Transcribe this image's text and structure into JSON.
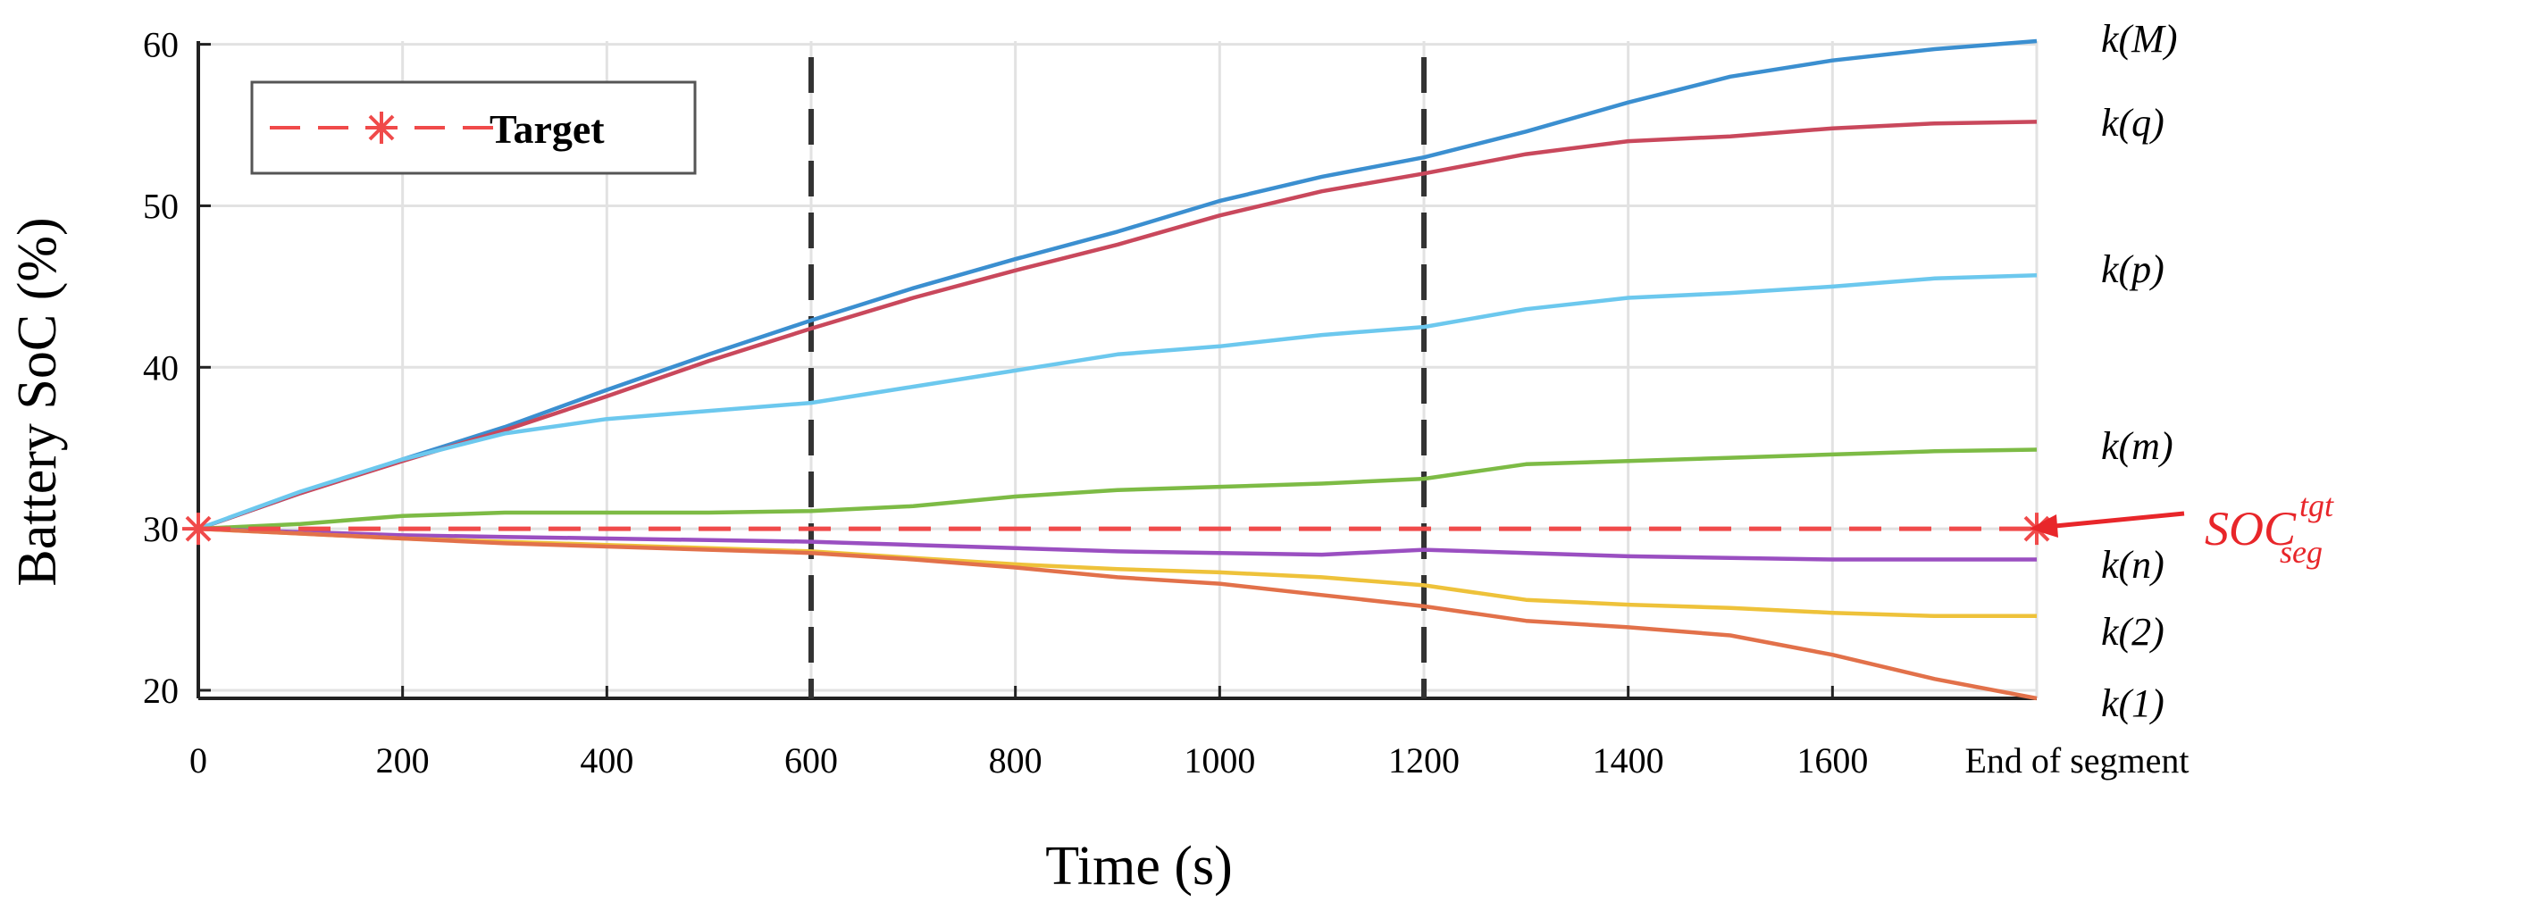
{
  "chart_data": {
    "type": "line",
    "title": "",
    "xlabel": "Time (s)",
    "ylabel": "Battery SoC (%)",
    "xlim": [
      0,
      1800
    ],
    "ylim": [
      19.5,
      60.2
    ],
    "grid": true,
    "x_ticks": [
      0,
      200,
      400,
      600,
      800,
      1000,
      1200,
      1400,
      1600
    ],
    "x_tick_labels": [
      "0",
      "200",
      "400",
      "600",
      "800",
      "1000",
      "1200",
      "1400",
      "1600"
    ],
    "x_end_label": "End of segment",
    "y_ticks": [
      20,
      30,
      40,
      50,
      60
    ],
    "y_tick_labels": [
      "20",
      "30",
      "40",
      "50",
      "60"
    ],
    "segment_boundaries": [
      600,
      1200
    ],
    "legend": {
      "position": "top-left",
      "entries": [
        "Target"
      ]
    },
    "target": {
      "name": "Target",
      "value": 30,
      "color": "#f04a4a",
      "annotation": {
        "base": "SOC",
        "superscript": "tgt",
        "subscript": "seg"
      }
    },
    "series": [
      {
        "name": "k(M)",
        "color": "#3b8fd0",
        "x": [
          0,
          100,
          200,
          300,
          400,
          500,
          600,
          700,
          800,
          900,
          1000,
          1100,
          1200,
          1300,
          1400,
          1500,
          1600,
          1700,
          1800
        ],
        "y": [
          30,
          32.2,
          34.3,
          36.3,
          38.6,
          40.8,
          42.9,
          44.9,
          46.7,
          48.4,
          50.3,
          51.8,
          53,
          54.6,
          56.4,
          58,
          59,
          59.7,
          60.2
        ]
      },
      {
        "name": "k(q)",
        "color": "#c9485c",
        "x": [
          0,
          100,
          200,
          300,
          400,
          500,
          600,
          700,
          800,
          900,
          1000,
          1100,
          1200,
          1300,
          1400,
          1500,
          1600,
          1700,
          1800
        ],
        "y": [
          30,
          32.2,
          34.2,
          36.1,
          38.2,
          40.4,
          42.4,
          44.3,
          46,
          47.6,
          49.4,
          50.9,
          52,
          53.2,
          54,
          54.3,
          54.8,
          55.1,
          55.2
        ]
      },
      {
        "name": "k(p)",
        "color": "#6cc8ee",
        "x": [
          0,
          100,
          200,
          300,
          400,
          500,
          600,
          700,
          800,
          900,
          1000,
          1100,
          1200,
          1300,
          1400,
          1500,
          1600,
          1700,
          1800
        ],
        "y": [
          30,
          32.3,
          34.3,
          35.9,
          36.8,
          37.3,
          37.8,
          38.8,
          39.8,
          40.8,
          41.3,
          42,
          42.5,
          43.6,
          44.3,
          44.6,
          45,
          45.5,
          45.7
        ]
      },
      {
        "name": "k(m)",
        "color": "#7dbb45",
        "x": [
          0,
          100,
          200,
          300,
          400,
          500,
          600,
          700,
          800,
          900,
          1000,
          1100,
          1200,
          1300,
          1400,
          1500,
          1600,
          1700,
          1800
        ],
        "y": [
          30,
          30.3,
          30.8,
          31,
          31,
          31,
          31.1,
          31.4,
          32,
          32.4,
          32.6,
          32.8,
          33.1,
          34,
          34.2,
          34.4,
          34.6,
          34.8,
          34.9
        ]
      },
      {
        "name": "k(n)",
        "color": "#9a4fc1",
        "x": [
          0,
          100,
          200,
          300,
          400,
          500,
          600,
          700,
          800,
          900,
          1000,
          1100,
          1200,
          1300,
          1400,
          1500,
          1600,
          1700,
          1800
        ],
        "y": [
          30,
          29.8,
          29.6,
          29.5,
          29.4,
          29.3,
          29.2,
          29,
          28.8,
          28.6,
          28.5,
          28.4,
          28.7,
          28.5,
          28.3,
          28.2,
          28.1,
          28.1,
          28.1
        ]
      },
      {
        "name": "k(2)",
        "color": "#eec23a",
        "x": [
          0,
          100,
          200,
          300,
          400,
          500,
          600,
          700,
          800,
          900,
          1000,
          1100,
          1200,
          1300,
          1400,
          1500,
          1600,
          1700,
          1800
        ],
        "y": [
          30,
          29.7,
          29.4,
          29.2,
          29,
          28.8,
          28.6,
          28.2,
          27.8,
          27.5,
          27.3,
          27,
          26.5,
          25.6,
          25.3,
          25.1,
          24.8,
          24.6,
          24.6
        ]
      },
      {
        "name": "k(1)",
        "color": "#e2714a",
        "x": [
          0,
          100,
          200,
          300,
          400,
          500,
          600,
          700,
          800,
          900,
          1000,
          1100,
          1200,
          1300,
          1400,
          1500,
          1600,
          1700,
          1800
        ],
        "y": [
          30,
          29.7,
          29.4,
          29.1,
          28.9,
          28.7,
          28.5,
          28.1,
          27.6,
          27,
          26.6,
          25.9,
          25.2,
          24.3,
          23.9,
          23.4,
          22.2,
          20.7,
          19.5
        ]
      }
    ]
  }
}
